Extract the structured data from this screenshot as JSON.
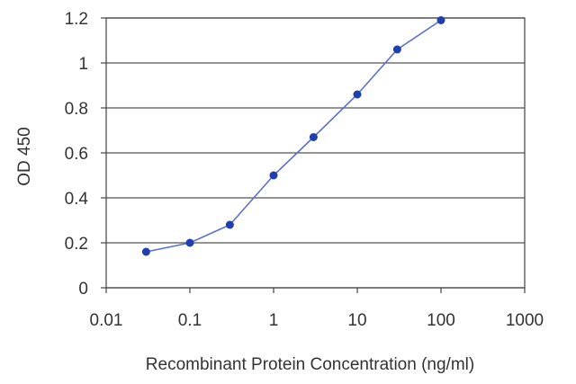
{
  "chart_data": {
    "type": "line",
    "title": "",
    "xlabel": "Recombinant Protein Concentration (ng/ml)",
    "ylabel": "OD 450",
    "x_scale": "log",
    "xlim": [
      0.01,
      1000
    ],
    "ylim": [
      0,
      1.2
    ],
    "x_ticks": [
      "0.01",
      "0.1",
      "1",
      "10",
      "100",
      "1000"
    ],
    "x_tick_values": [
      0.01,
      0.1,
      1,
      10,
      100,
      1000
    ],
    "y_ticks": [
      "0",
      "0.2",
      "0.4",
      "0.6",
      "0.8",
      "1",
      "1.2"
    ],
    "y_tick_values": [
      0,
      0.2,
      0.4,
      0.6,
      0.8,
      1.0,
      1.2
    ],
    "grid": "horizontal",
    "legend": "none",
    "series": [
      {
        "color": "#1f3fae",
        "x": [
          0.03,
          0.1,
          0.3,
          1,
          3,
          10,
          30,
          100
        ],
        "y": [
          0.16,
          0.2,
          0.28,
          0.5,
          0.67,
          0.86,
          1.06,
          1.19
        ]
      }
    ]
  }
}
